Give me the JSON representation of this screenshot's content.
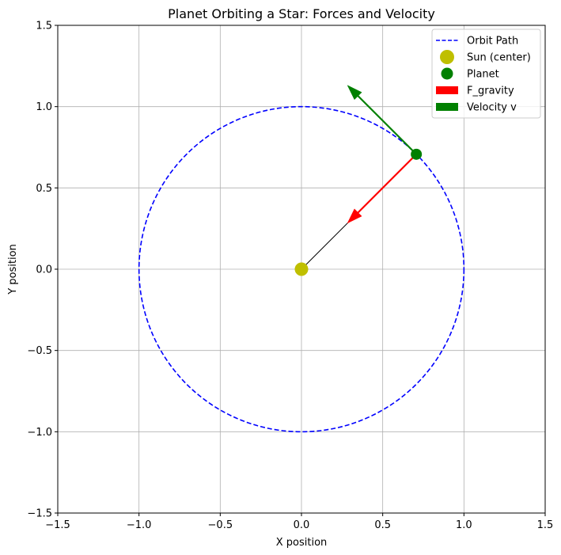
{
  "chart_data": {
    "type": "scatter",
    "title": "Planet Orbiting a Star: Forces and Velocity",
    "xlabel": "X position",
    "ylabel": "Y position",
    "xlim": [
      -1.5,
      1.5
    ],
    "ylim": [
      -1.5,
      1.5
    ],
    "xticks": [
      -1.5,
      -1.0,
      -0.5,
      0.0,
      0.5,
      1.0,
      1.5
    ],
    "yticks": [
      -1.5,
      -1.0,
      -0.5,
      0.0,
      0.5,
      1.0,
      1.5
    ],
    "xtick_labels": [
      "−1.5",
      "−1.0",
      "−0.5",
      "0.0",
      "0.5",
      "1.0",
      "1.5"
    ],
    "ytick_labels": [
      "−1.5",
      "−1.0",
      "−0.5",
      "0.0",
      "0.5",
      "1.0",
      "1.5"
    ],
    "grid": true,
    "legend_position": "top-right",
    "orbit": {
      "name": "Orbit Path",
      "center": [
        0,
        0
      ],
      "radius": 1.0,
      "color": "#0000ff",
      "style": "dashed"
    },
    "sun": {
      "name": "Sun (center)",
      "x": 0.0,
      "y": 0.0,
      "color": "#bfbf00"
    },
    "planet": {
      "name": "Planet",
      "x": 0.707,
      "y": 0.707,
      "color": "#008000"
    },
    "vectors": [
      {
        "name": "F_gravity",
        "from": [
          0.707,
          0.707
        ],
        "to": [
          0.283,
          0.283
        ],
        "color": "#ff0000"
      },
      {
        "name": "Velocity v",
        "from": [
          0.707,
          0.707
        ],
        "to": [
          0.283,
          1.131
        ],
        "color": "#008000"
      }
    ],
    "radius_line": {
      "from": [
        0.0,
        0.0
      ],
      "to": [
        0.707,
        0.707
      ],
      "color": "#000000"
    },
    "legend": [
      {
        "label": "Orbit Path",
        "kind": "dashed-line",
        "color": "#0000ff"
      },
      {
        "label": "Sun (center)",
        "kind": "dot",
        "color": "#bfbf00"
      },
      {
        "label": "Planet",
        "kind": "dot",
        "color": "#008000"
      },
      {
        "label": "F_gravity",
        "kind": "patch",
        "color": "#ff0000"
      },
      {
        "label": "Velocity v",
        "kind": "patch",
        "color": "#008000"
      }
    ]
  }
}
